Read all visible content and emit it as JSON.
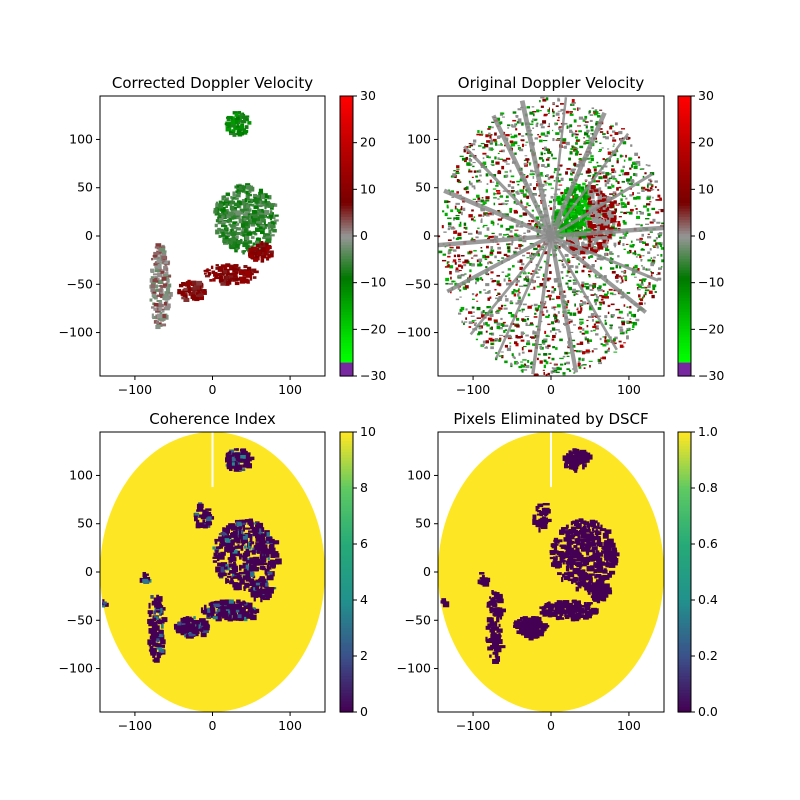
{
  "chart_data": [
    {
      "type": "heatmap",
      "title": "Corrected Doppler Velocity",
      "xlabel": "",
      "ylabel": "",
      "xlim": [
        -145,
        145
      ],
      "ylim": [
        -145,
        145
      ],
      "xticks": [
        -100,
        0,
        100
      ],
      "yticks": [
        -100,
        -50,
        0,
        50,
        100
      ],
      "grid": false,
      "colorbar": {
        "min": -30,
        "max": 30,
        "ticks": [
          -30,
          -20,
          -10,
          0,
          10,
          20,
          30
        ],
        "cmap": "velocity"
      },
      "mode": "corrected",
      "features": [
        {
          "name": "central-echo",
          "center": [
            40,
            20
          ],
          "radii": [
            40,
            35
          ],
          "value": -6
        },
        {
          "name": "north-cell",
          "center": [
            30,
            118
          ],
          "radii": [
            15,
            12
          ],
          "value": -10
        },
        {
          "name": "southwest-cell",
          "center": [
            -30,
            -55
          ],
          "radii": [
            18,
            10
          ],
          "value": 8
        },
        {
          "name": "south-band",
          "center": [
            20,
            -38
          ],
          "radii": [
            35,
            10
          ],
          "value": 9
        },
        {
          "name": "east-cell",
          "center": [
            60,
            -15
          ],
          "radii": [
            15,
            10
          ],
          "value": 10
        },
        {
          "name": "west-streak",
          "center": [
            -70,
            -50
          ],
          "radii": [
            12,
            45
          ],
          "value": 1
        }
      ]
    },
    {
      "type": "heatmap",
      "title": "Original Doppler Velocity",
      "xlabel": "",
      "ylabel": "",
      "xlim": [
        -145,
        145
      ],
      "ylim": [
        -145,
        145
      ],
      "xticks": [
        -100,
        0,
        100
      ],
      "yticks": [
        -100,
        -50,
        0,
        50,
        100
      ],
      "grid": false,
      "colorbar": {
        "min": -30,
        "max": 30,
        "ticks": [
          -30,
          -20,
          -10,
          0,
          10,
          20,
          30
        ],
        "cmap": "velocity"
      },
      "mode": "original",
      "radar_range": 145
    },
    {
      "type": "heatmap",
      "title": "Coherence Index",
      "xlabel": "",
      "ylabel": "",
      "xlim": [
        -145,
        145
      ],
      "ylim": [
        -145,
        145
      ],
      "xticks": [
        -100,
        0,
        100
      ],
      "yticks": [
        -100,
        -50,
        0,
        50,
        100
      ],
      "grid": false,
      "colorbar": {
        "min": 0,
        "max": 10,
        "ticks": [
          0,
          2,
          4,
          6,
          8,
          10
        ],
        "cmap": "viridis"
      },
      "mode": "coherence",
      "radar_range": 145
    },
    {
      "type": "heatmap",
      "title": "Pixels Eliminated by DSCF",
      "xlabel": "",
      "ylabel": "",
      "xlim": [
        -145,
        145
      ],
      "ylim": [
        -145,
        145
      ],
      "xticks": [
        -100,
        0,
        100
      ],
      "yticks": [
        -100,
        -50,
        0,
        50,
        100
      ],
      "grid": false,
      "colorbar": {
        "min": 0.0,
        "max": 1.0,
        "ticks": [
          "0.0",
          "0.2",
          "0.4",
          "0.6",
          "0.8",
          "1.0"
        ],
        "cmap": "viridis"
      },
      "mode": "dscf",
      "radar_range": 145
    }
  ]
}
